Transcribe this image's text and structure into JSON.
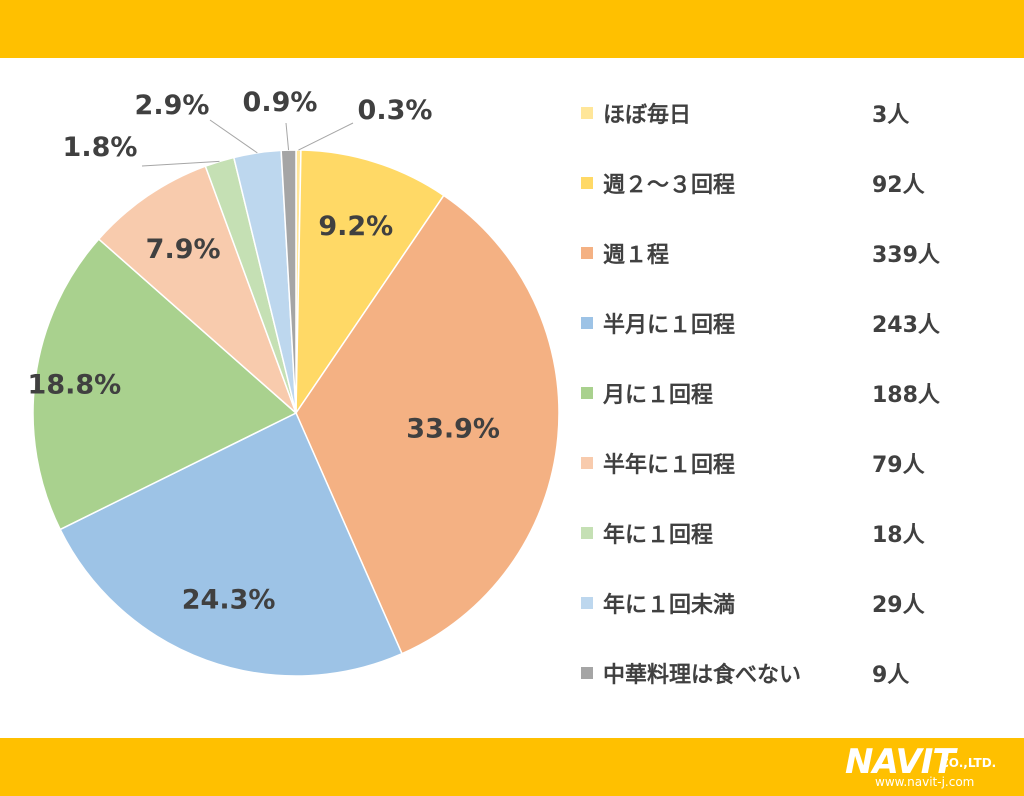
{
  "chart_data": {
    "type": "pie",
    "title": "",
    "categories": [
      "ほぼ毎日",
      "週２～３回程",
      "週１程",
      "半月に１回程",
      "月に１回程",
      "半年に１回程",
      "年に１回程",
      "年に１回未満",
      "中華料理は食べない"
    ],
    "counts": [
      "3人",
      "92人",
      "339人",
      "243人",
      "188人",
      "79人",
      "18人",
      "29人",
      "9人"
    ],
    "values": [
      0.3,
      9.2,
      33.9,
      24.3,
      18.8,
      7.9,
      1.8,
      2.9,
      0.9
    ],
    "labels": [
      "0.3%",
      "9.2%",
      "33.9%",
      "24.3%",
      "18.8%",
      "7.9%",
      "1.8%",
      "2.9%",
      "0.9%"
    ],
    "colors": [
      "#FFE699",
      "#FFD966",
      "#F4B183",
      "#9DC3E6",
      "#A9D18E",
      "#F8CBAD",
      "#C5E0B4",
      "#BDD7EE",
      "#A5A5A5"
    ],
    "legend_position": "right",
    "start_angle": "top, clockwise"
  },
  "brand": {
    "name": "NAVIT",
    "suffix": "CO.,LTD.",
    "url": "www.navit-j.com"
  },
  "theme": {
    "band_color": "#FFC000",
    "label_color": "#404040"
  }
}
